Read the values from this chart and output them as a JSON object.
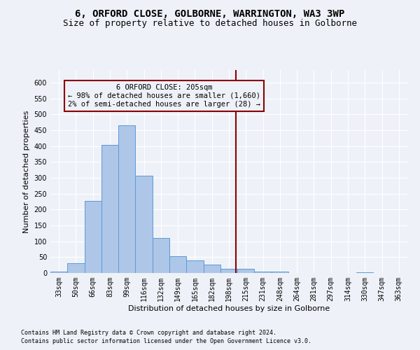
{
  "title1": "6, ORFORD CLOSE, GOLBORNE, WARRINGTON, WA3 3WP",
  "title2": "Size of property relative to detached houses in Golborne",
  "xlabel": "Distribution of detached houses by size in Golborne",
  "ylabel": "Number of detached properties",
  "bar_labels": [
    "33sqm",
    "50sqm",
    "66sqm",
    "83sqm",
    "99sqm",
    "116sqm",
    "132sqm",
    "149sqm",
    "165sqm",
    "182sqm",
    "198sqm",
    "215sqm",
    "231sqm",
    "248sqm",
    "264sqm",
    "281sqm",
    "297sqm",
    "314sqm",
    "330sqm",
    "347sqm",
    "363sqm"
  ],
  "bar_values": [
    5,
    30,
    228,
    403,
    465,
    307,
    110,
    53,
    39,
    26,
    13,
    13,
    5,
    5,
    0,
    0,
    0,
    0,
    3,
    0,
    0
  ],
  "bar_color": "#aec6e8",
  "bar_edge_color": "#5b9bd5",
  "vline_color": "#8b0000",
  "annotation_text": "6 ORFORD CLOSE: 205sqm\n← 98% of detached houses are smaller (1,660)\n2% of semi-detached houses are larger (28) →",
  "annotation_box_color": "#8b0000",
  "ylim": [
    0,
    640
  ],
  "yticks": [
    0,
    50,
    100,
    150,
    200,
    250,
    300,
    350,
    400,
    450,
    500,
    550,
    600
  ],
  "footnote1": "Contains HM Land Registry data © Crown copyright and database right 2024.",
  "footnote2": "Contains public sector information licensed under the Open Government Licence v3.0.",
  "bg_color": "#eef2f8",
  "grid_color": "#ffffff",
  "title_fontsize": 10,
  "subtitle_fontsize": 9,
  "axis_label_fontsize": 8,
  "tick_fontsize": 7,
  "annot_fontsize": 7.5,
  "footnote_fontsize": 6
}
